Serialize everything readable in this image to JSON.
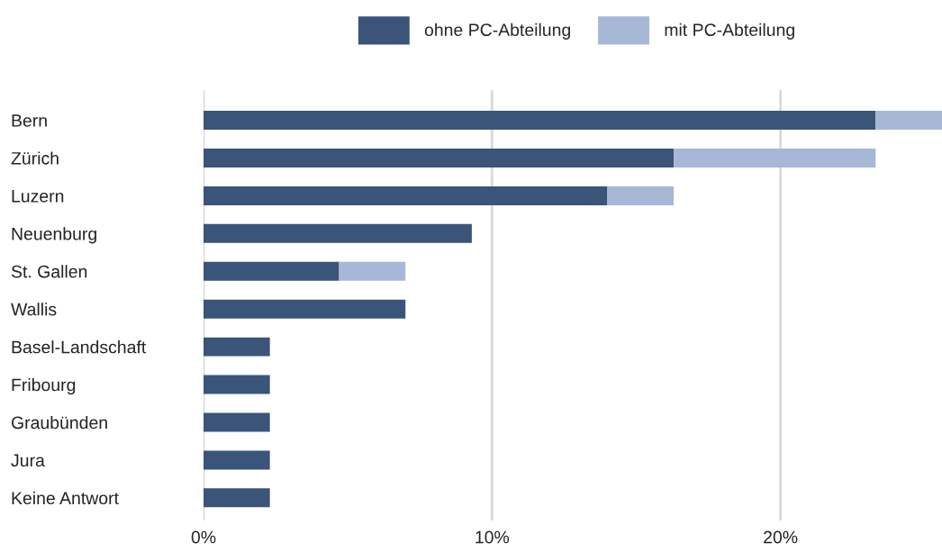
{
  "chart_data": {
    "type": "bar",
    "orientation": "horizontal",
    "stacked": true,
    "categories": [
      "Bern",
      "Zürich",
      "Luzern",
      "Neuenburg",
      "St. Gallen",
      "Wallis",
      "Basel-Landschaft",
      "Fribourg",
      "Graubünden",
      "Jura",
      "Keine Antwort"
    ],
    "series": [
      {
        "name": "ohne PC-Abteilung",
        "color": "#3b5479",
        "values": [
          23.3,
          16.3,
          14.0,
          9.3,
          4.7,
          7.0,
          2.3,
          2.3,
          2.3,
          2.3,
          2.3
        ]
      },
      {
        "name": "mit PC-Abteilung",
        "color": "#a7b8d6",
        "values": [
          2.3,
          7.0,
          2.3,
          null,
          2.3,
          null,
          null,
          null,
          null,
          null,
          null
        ]
      }
    ],
    "xlim": [
      0,
      25.6
    ],
    "xticks": [
      {
        "value": 0,
        "label": "0%"
      },
      {
        "value": 10,
        "label": "10%"
      },
      {
        "value": 20,
        "label": "20%"
      }
    ],
    "grid": "x",
    "legend": "top"
  }
}
